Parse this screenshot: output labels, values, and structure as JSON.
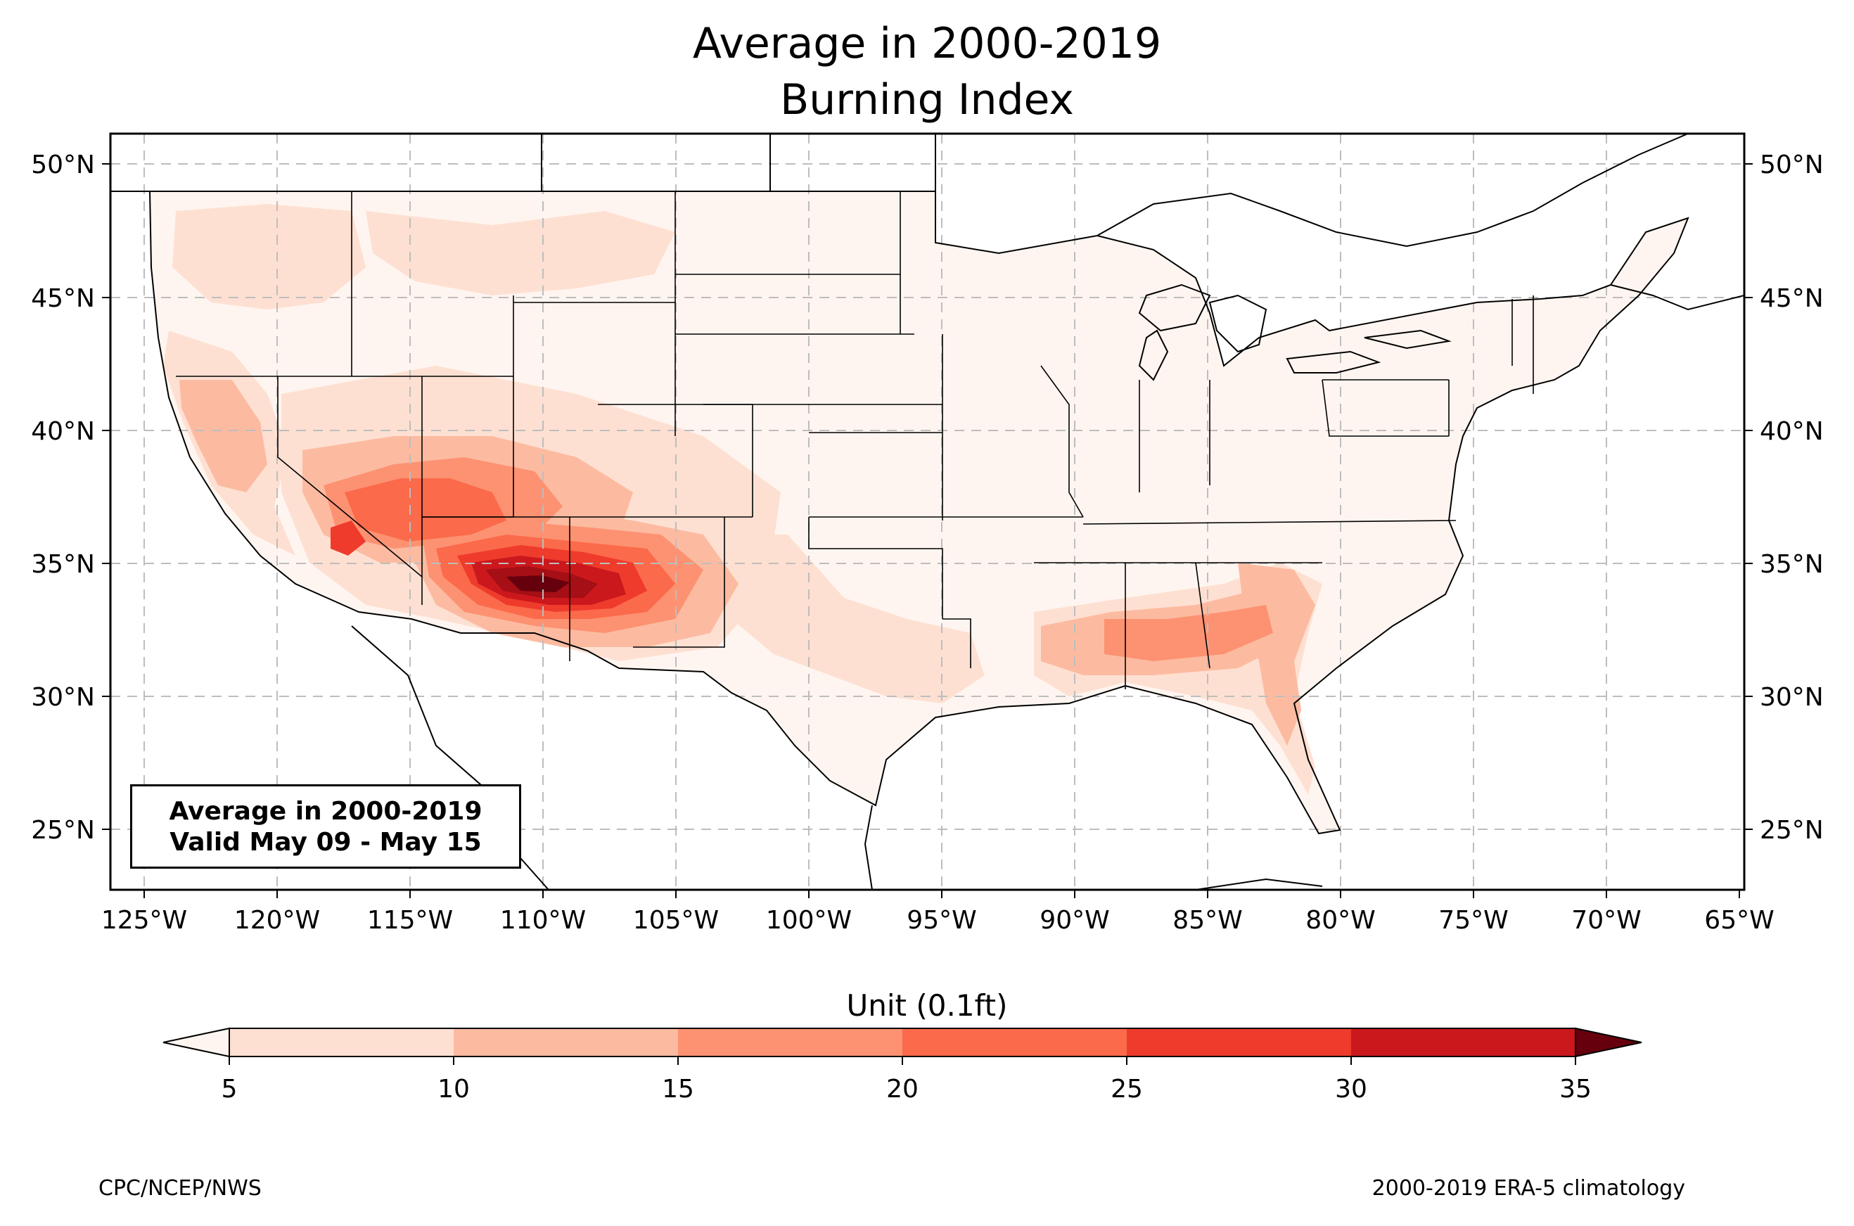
{
  "title": "Average in 2000-2019",
  "subtitle": "Burning Index",
  "validity": {
    "line1": "Average in 2000-2019",
    "line2": "Valid May 09 - May 15"
  },
  "map": {
    "lon_ticks": [
      "125°W",
      "120°W",
      "115°W",
      "110°W",
      "105°W",
      "100°W",
      "95°W",
      "90°W",
      "85°W",
      "80°W",
      "75°W",
      "70°W",
      "65°W"
    ],
    "lat_ticks": [
      "50°N",
      "45°N",
      "40°N",
      "35°N",
      "30°N",
      "25°N"
    ],
    "extent": {
      "lon": [
        -126.3,
        -64.9
      ],
      "lat": [
        22.7,
        51.2
      ]
    }
  },
  "colorbar": {
    "label": "Unit (0.1ft)",
    "ticks": [
      "5",
      "10",
      "15",
      "20",
      "25",
      "30",
      "35"
    ],
    "colors": [
      "#fee0d2",
      "#fcbba1",
      "#fc9272",
      "#fb6a4a",
      "#ef3b2c",
      "#cb181d",
      "#a50f15"
    ],
    "under_color": "#fff5f0",
    "over_color": "#67000d"
  },
  "footer": {
    "left": "CPC/NCEP/NWS",
    "right": "2000-2019 ERA-5 climatology"
  }
}
